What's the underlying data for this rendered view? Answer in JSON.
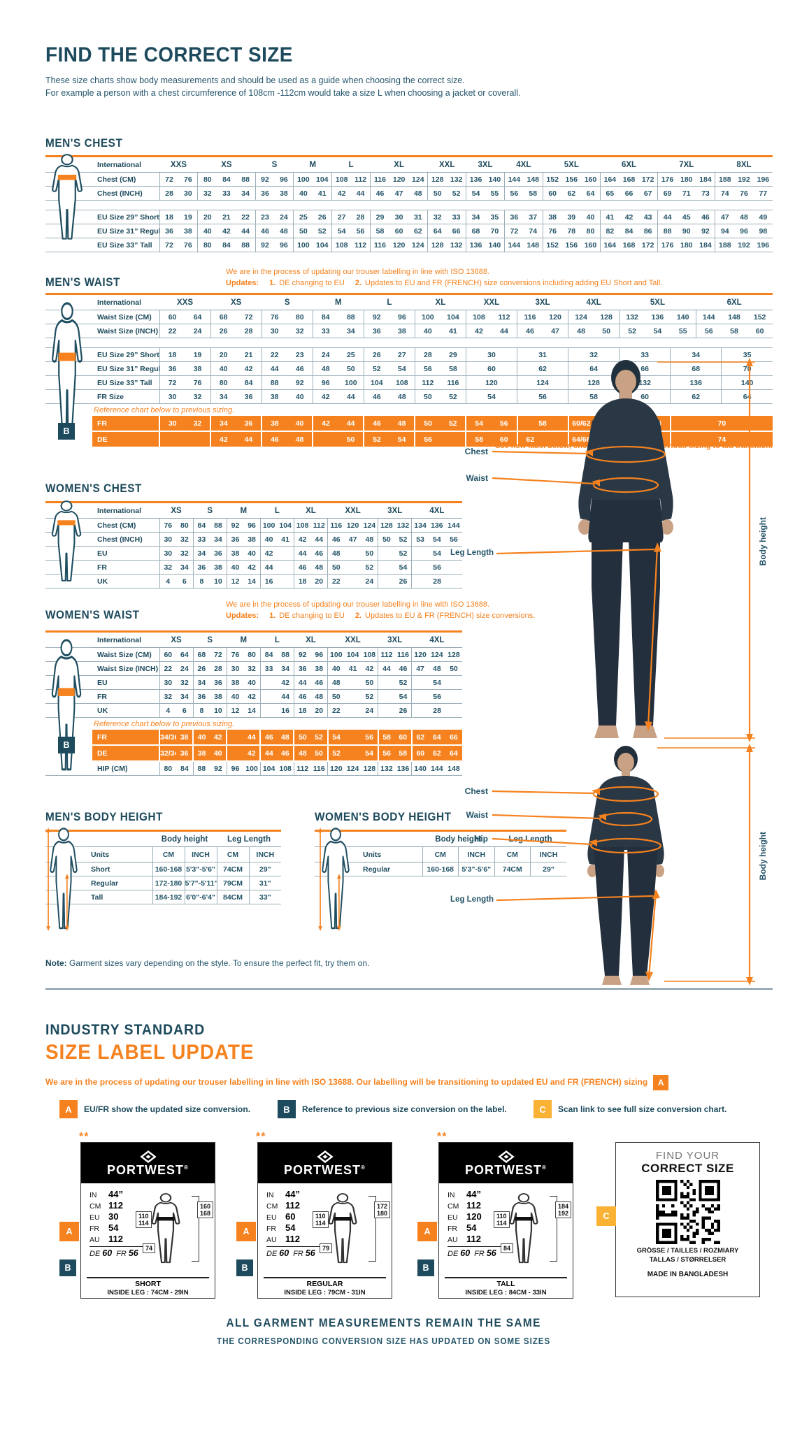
{
  "colors": {
    "navy": "#1d4a5c",
    "table_text": "#235468",
    "orange": "#F5821F",
    "amber": "#F9B234",
    "line": "#9db0ba"
  },
  "hero": {
    "title": "FIND THE CORRECT SIZE",
    "line1": "These size charts show body measurements and should be used as a guide when choosing the correct size.",
    "line2": "For example a person with a chest circumference of 108cm -112cm would take a size L when choosing a jacket or coverall."
  },
  "sections": {
    "mens_chest": {
      "title": "MEN'S CHEST",
      "label_header": "International",
      "columns": "XXS*2 XS*3 S*2 M*2 L*2 XL*3 XXL*2 3XL*2 4XL*2 5XL*3 6XL*3 7XL*3 8XL*3",
      "rows": [
        {
          "label": "Chest (CM)",
          "cells": "72 76 80 84 88 92 96 100 104 108 112 116 120 124 128 132 136 140 144 148 152 156 160 164 168 172 176 180 184 188 192 196"
        },
        {
          "label": "Chest (INCH)",
          "cells": "28 30 32 33 34 36 38 40 41 42 44 46 47 48 50 52 54 55 56 58 60 62 64 65 66 67 69 71 73 74 76 77"
        },
        {
          "gap": true
        },
        {
          "label": "EU Size 29” Short",
          "cells": "18 19 20 21 22 23 24 25 26 27 28 29 30 31 32 33 34 35 36 37 38 39 40 41 42 43 44 45 46 47 48 49"
        },
        {
          "label": "EU Size 31” Regular",
          "cells": "36 38 40 42 44 46 48 50 52 54 56 58 60 62 64 66 68 70 72 74 76 78 80 82 84 86 88 90 92 94 96 98"
        },
        {
          "label": "EU Size 33” Tall",
          "cells": "72 76 80 84 88 92 96 100 104 108 112 116 120 124 128 132 136 140 144 148 152 156 160 164 168 172 176 180 184 188 192 196"
        }
      ]
    },
    "mens_waist": {
      "title": "MEN'S WAIST",
      "note1": "We are in the process of updating our trouser labelling in line with ISO 13688.",
      "note2": [
        {
          "t": "Updates:",
          "b": 1
        },
        {
          "t": "1.",
          "b": 1
        },
        {
          "t": "DE changing to EU"
        },
        {
          "t": "2.",
          "b": 1
        },
        {
          "t": "Updates to EU and FR (FRENCH) size conversions including adding EU Short and Tall."
        }
      ],
      "label_header": "International",
      "columns": "XXS*2 XS*2 S*2 M*2 L*2 XL*2 XXL*2 3XL*2 4XL*2 5XL*3 6XL*3",
      "ref_badge": "B",
      "footnote": "**See new label below, showing updated and previous sizing to aid transition.",
      "rows": [
        {
          "label": "Waist Size (CM)",
          "cells": "60 64 68 72 76 80 84 88 92 96 100 104 108 112 116 120 124 128 132 136 140 144 148 152"
        },
        {
          "label": "Waist Size (INCH)",
          "cells": "22 24 26 28 30 32 33 34 36 38 40 41 42 44 46 47 48 50 52 54 55 56 58 60"
        },
        {
          "gap": true
        },
        {
          "label": "EU Size 29” Short",
          "cells": "18 19 20 21 22 23 24 25 26 27 28 29 30*2 31*2 32*2 33*2 34*2 35*2"
        },
        {
          "label": "EU Size 31” Regular",
          "cells": "36 38 40 42 44 46 48 50 52 54 56 58 60*2 62*2 64*2 66*2 68*2 70*2"
        },
        {
          "label": "EU Size 33” Tall",
          "cells": "72 76 80 84 88 92 96 100 104 108 112 116 120*2 124*2 128*2 132*2 136*2 140*2"
        },
        {
          "label": "FR Size",
          "cells": "30 32 34 36 38 40 42 44 46 48 50 52 54*2 56*2 58*2 60*2 62*2 64*2"
        },
        {
          "note": "Reference chart below to previous sizing."
        },
        {
          "label": "FR",
          "orange": true,
          "cells": "30 32 34 36 38 40 42 44 46 48 50 52 54 56 58*2 60/62 64 66 68 70*4"
        },
        {
          "label": "DE",
          "orange": true,
          "cells": "_ _ 42 44 46 48 _ 50 52 54 56 _ 58 60 62 _ 64/66 68 70 72 74*4"
        }
      ]
    },
    "womens_chest": {
      "title": "WOMEN'S CHEST",
      "label_header": "International",
      "columns": "XS*2 S*2 M*2 L*2 XL*2 XXL*3 3XL*2 4XL*3",
      "rows": [
        {
          "label": "Chest (CM)",
          "cells": "76 80 84 88 92 96 100 104 108 112 116 120 124 128 132 134 136 144"
        },
        {
          "label": "Chest (INCH)",
          "cells": "30 32 33 34 36 38 40 41 42 44 46 47 48 50 52 53 54 56"
        },
        {
          "label": "EU",
          "cells": "30 32 34 36 38 40 42 _ 44 46 48 _ 50 _ 52 54*3"
        },
        {
          "label": "FR",
          "cells": "32 34 36 38 40 42 44 _ 46 48 50 _ 52 _ 54 56*3"
        },
        {
          "label": "UK",
          "cells": "4 6 8 10 12 14 16 _ 18 20 22 _ 24 _ 26 28*3"
        }
      ]
    },
    "womens_waist": {
      "title": "WOMEN'S WAIST",
      "note1": "We are in the process of updating our trouser labelling in line with ISO 13688.",
      "note2": [
        {
          "t": "Updates:",
          "b": 1
        },
        {
          "t": "1.",
          "b": 1
        },
        {
          "t": "DE changing to EU"
        },
        {
          "t": "2.",
          "b": 1
        },
        {
          "t": "Updates to EU & FR (FRENCH) size conversions."
        }
      ],
      "label_header": "International",
      "columns": "XS*2 S*2 M*2 L*2 XL*2 XXL*3 3XL*2 4XL*3",
      "ref_badge": "B",
      "rows": [
        {
          "label": "Waist Size (CM)",
          "cells": "60 64 68 72 76 80 84 88 92 96 100 104 108 112 116 120 124 128"
        },
        {
          "label": "Waist Size (INCH)",
          "cells": "22 24 26 28 30 32 33 34 36 38 40 41 42 44 46 47 48 50"
        },
        {
          "label": "EU",
          "cells": "30 32 34 36 38 40 _ 42 44 46 48 _ 50 _ 52 54*3"
        },
        {
          "label": "FR",
          "cells": "32 34 36 38 40 42 _ 44 46 48 50 _ 52 _ 54 56*3"
        },
        {
          "label": "UK",
          "cells": "4 6 8 10 12 14 _ 16 18 20 22 _ 24 _ 26 28*3"
        },
        {
          "note": "Reference chart below to previous sizing."
        },
        {
          "label": "FR",
          "orange": true,
          "cells": "34/36 38 40 42 _ 44 46 48 50 52 54 _ 56 58 60 62 64 66"
        },
        {
          "label": "DE",
          "orange": true,
          "cells": "32/34 36 38 40 _ 42 44 46 48 50 52 _ 54 56 58 60 62 64"
        },
        {
          "label": "HIP (CM)",
          "cells": "80 84 88 92 96 100 104 108 112 116 120 124 128 132 136 140 144 148"
        }
      ]
    },
    "mens_height": {
      "title": "MEN'S BODY HEIGHT",
      "group_headers": [
        "Body height",
        "Leg Length"
      ],
      "col_headers": [
        "Units",
        "CM",
        "INCH",
        "CM",
        "INCH"
      ],
      "rows": [
        [
          "Short",
          "160-168",
          "5'3\"-5'6\"",
          "74CM",
          "29\""
        ],
        [
          "Regular",
          "172-180",
          "5'7\"-5'11\"",
          "79CM",
          "31\""
        ],
        [
          "Tall",
          "184-192",
          "6'0\"-6'4\"",
          "84CM",
          "33\""
        ]
      ]
    },
    "womens_height": {
      "title": "WOMEN'S BODY HEIGHT",
      "group_headers": [
        "Body height",
        "Leg Length"
      ],
      "col_headers": [
        "Units",
        "CM",
        "INCH",
        "CM",
        "INCH"
      ],
      "rows": [
        [
          "Regular",
          "160-168",
          "5'3\"-5'6\"",
          "74CM",
          "29\""
        ]
      ]
    }
  },
  "note": {
    "bold": "Note:",
    "text": "Garment sizes vary depending on the style. To ensure the perfect fit, try them on."
  },
  "figures": {
    "man": {
      "chest": "Chest",
      "waist": "Waist",
      "leg": "Leg Length",
      "height": "Body height"
    },
    "woman": {
      "chest": "Chest",
      "waist": "Waist",
      "hip": "Hip",
      "leg": "Leg Length",
      "height": "Body height"
    }
  },
  "industry": {
    "heading1": "INDUSTRY STANDARD",
    "heading2": "SIZE LABEL UPDATE",
    "intro": "We are in the process of updating our trouser labelling in line with ISO 13688. Our labelling will be transitioning to updated EU and FR (FRENCH) sizing",
    "intro_badge": "A",
    "legend": [
      {
        "badge": "A",
        "color": "#F5821F",
        "text": "EU/FR show the updated size conversion."
      },
      {
        "badge": "B",
        "color": "#1d4a5c",
        "text": "Reference to previous size conversion on the label."
      },
      {
        "badge": "C",
        "color": "#F9B234",
        "text": "Scan link to see full size conversion chart."
      }
    ],
    "cards": [
      {
        "stars": "**",
        "brand": "PORTWEST",
        "rows": [
          {
            "k": "IN",
            "v": "44”"
          },
          {
            "k": "CM",
            "v": "112"
          },
          {
            "k": "EU",
            "v": "30"
          },
          {
            "k": "FR",
            "v": "54"
          },
          {
            "k": "AU",
            "v": "112"
          }
        ],
        "ref": [
          {
            "k": "DE",
            "v": "60"
          },
          {
            "k": "FR",
            "v": "56"
          }
        ],
        "waist_box": "110|114",
        "height_box": "160|168",
        "leg_box": "74",
        "fit": "SHORT",
        "inside_leg": "INSIDE LEG : 74CM - 29IN"
      },
      {
        "stars": "**",
        "brand": "PORTWEST",
        "rows": [
          {
            "k": "IN",
            "v": "44”"
          },
          {
            "k": "CM",
            "v": "112"
          },
          {
            "k": "EU",
            "v": "60"
          },
          {
            "k": "FR",
            "v": "54"
          },
          {
            "k": "AU",
            "v": "112"
          }
        ],
        "ref": [
          {
            "k": "DE",
            "v": "60"
          },
          {
            "k": "FR",
            "v": "56"
          }
        ],
        "waist_box": "110|114",
        "height_box": "172|180",
        "leg_box": "79",
        "fit": "REGULAR",
        "inside_leg": "INSIDE LEG : 79CM - 31IN"
      },
      {
        "stars": "**",
        "brand": "PORTWEST",
        "rows": [
          {
            "k": "IN",
            "v": "44”"
          },
          {
            "k": "CM",
            "v": "112"
          },
          {
            "k": "EU",
            "v": "120"
          },
          {
            "k": "FR",
            "v": "54"
          },
          {
            "k": "AU",
            "v": "112"
          }
        ],
        "ref": [
          {
            "k": "DE",
            "v": "60"
          },
          {
            "k": "FR",
            "v": "56"
          }
        ],
        "waist_box": "110|114",
        "height_box": "184|192",
        "leg_box": "84",
        "fit": "TALL",
        "inside_leg": "INSIDE LEG : 84CM - 33IN"
      }
    ],
    "qr_card": {
      "badge": "C",
      "line1": "FIND YOUR",
      "line2": "CORRECT SIZE",
      "lang1": "GRÖSSE / TAILLES / ROZMIARY",
      "lang2": "TALLAS / STØRRELSER",
      "origin": "MADE IN BANGLADESH"
    },
    "footer1": "ALL GARMENT MEASUREMENTS REMAIN THE SAME",
    "footer2": "THE CORRESPONDING CONVERSION SIZE HAS UPDATED ON SOME SIZES"
  }
}
